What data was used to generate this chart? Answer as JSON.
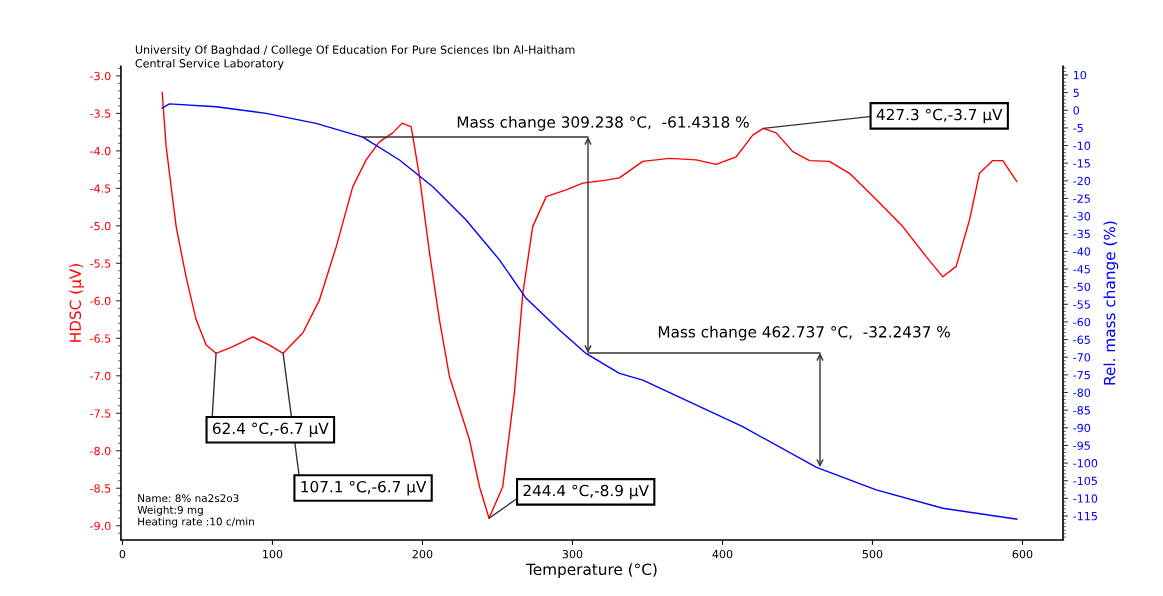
{
  "chart_data": {
    "type": "line",
    "title": "University Of Baghdad / College Of Education For Pure Sciences Ibn Al-Haitham",
    "subtitle": "Central Service Laboratory",
    "xlabel": "Temperature (°C)",
    "ylabel": "HDSC (µV)",
    "y2label": "Rel. mass change (%)",
    "xlim": [
      -1,
      627
    ],
    "xticks": [
      0,
      100,
      200,
      300,
      400,
      500,
      600
    ],
    "ylim": [
      -9.19,
      -2.87
    ],
    "yticks": [
      {
        "value": -9.0,
        "label": "-9.0"
      },
      {
        "value": -8.5,
        "label": "-8.5"
      },
      {
        "value": -8.0,
        "label": "-8.0"
      },
      {
        "value": -7.5,
        "label": "-7.5"
      },
      {
        "value": -7.0,
        "label": "-7.0"
      },
      {
        "value": -6.5,
        "label": "-6.5"
      },
      {
        "value": -6.0,
        "label": "-6.0"
      },
      {
        "value": -5.5,
        "label": "-5.5"
      },
      {
        "value": -5.0,
        "label": "-5.0"
      },
      {
        "value": -4.5,
        "label": "-4.5"
      },
      {
        "value": -4.0,
        "label": "-4.0"
      },
      {
        "value": -3.5,
        "label": "-3.5"
      },
      {
        "value": -3.0,
        "label": "-3.0"
      }
    ],
    "y2lim": [
      -121.8,
      12.5
    ],
    "y2ticks": [
      10,
      5,
      0,
      -5,
      -10,
      -15,
      -20,
      -25,
      -30,
      -35,
      -40,
      -45,
      -50,
      -55,
      -60,
      -65,
      -70,
      -75,
      -80,
      -85,
      -90,
      -95,
      -100,
      -105,
      -110,
      -115
    ],
    "grid": false,
    "legend": false,
    "line_style": "solid",
    "marker": "none",
    "series": [
      {
        "color": "#ff0000",
        "x": [
          26.5,
          29.1,
          35.8,
          42.4,
          49.1,
          55.8,
          62.4,
          73.6,
          86.9,
          98,
          107.1,
          120.2,
          131.3,
          142.5,
          153.5,
          162.5,
          171.3,
          180.2,
          186.5,
          192.5,
          198,
          204.7,
          211.3,
          218,
          231.3,
          238,
          244.4,
          253.5,
          261.3,
          266.9,
          273.5,
          282.5,
          295.8,
          306.9,
          322.5,
          331.3,
          346.9,
          364.7,
          382.5,
          395.8,
          409.1,
          420.2,
          427.3,
          435.8,
          446.9,
          458,
          471.3,
          484.7,
          502.5,
          520.2,
          535.8,
          546.9,
          555.8,
          564.7,
          571.3,
          580.2,
          586.9,
          596.2
        ],
        "values": [
          -3.22,
          -3.94,
          -5.01,
          -5.68,
          -6.25,
          -6.59,
          -6.7,
          -6.61,
          -6.48,
          -6.59,
          -6.7,
          -6.43,
          -5.99,
          -5.28,
          -4.48,
          -4.12,
          -3.88,
          -3.76,
          -3.63,
          -3.68,
          -4.34,
          -5.36,
          -6.25,
          -7.01,
          -7.85,
          -8.48,
          -8.9,
          -8.48,
          -7.23,
          -5.9,
          -5.01,
          -4.61,
          -4.52,
          -4.43,
          -4.39,
          -4.36,
          -4.14,
          -4.1,
          -4.12,
          -4.18,
          -4.08,
          -3.79,
          -3.7,
          -3.76,
          -4.01,
          -4.13,
          -4.14,
          -4.3,
          -4.65,
          -5.01,
          -5.41,
          -5.68,
          -5.54,
          -4.92,
          -4.3,
          -4.13,
          -4.13,
          -4.41
        ]
      },
      {
        "color": "#0000ff",
        "axis": "y2",
        "x": [
          26.5,
          31.3,
          62.5,
          95.8,
          129.1,
          160.2,
          184.7,
          206.9,
          229.1,
          251.3,
          269.1,
          291.3,
          309.2,
          331.3,
          346.9,
          380.2,
          413.5,
          462.7,
          502.5,
          546.9,
          596.2
        ],
        "values": [
          0.6,
          1.8,
          1.0,
          -0.9,
          -3.7,
          -7.6,
          -14.1,
          -21.7,
          -31.1,
          -42.4,
          -53.3,
          -62.3,
          -69.0,
          -74.6,
          -76.5,
          -83.1,
          -89.7,
          -101.2,
          -107.6,
          -112.8,
          -115.9
        ]
      }
    ],
    "annotations": [
      {
        "text": "62.4 °C,-6.7 µV",
        "x": 62.4,
        "y": -6.7
      },
      {
        "text": "107.1 °C,-6.7 µV",
        "x": 107.1,
        "y": -6.7
      },
      {
        "text": "244.4 °C,-8.9 µV",
        "x": 244.4,
        "y": -8.9
      },
      {
        "text": "427.3 °C,-3.7 µV",
        "x": 427.3,
        "y": -3.7
      },
      {
        "text": "Mass change 309.238 °C,  -61.4318 %",
        "x": 309.238,
        "y": -6.69
      },
      {
        "text": "Mass change 462.737 °C,  -32.2437 %",
        "x": 462.737,
        "y": -8.21
      },
      "Name: 8% na2s2o3\nWeight:9 mg\nHeating rate :10 c/min"
    ]
  }
}
